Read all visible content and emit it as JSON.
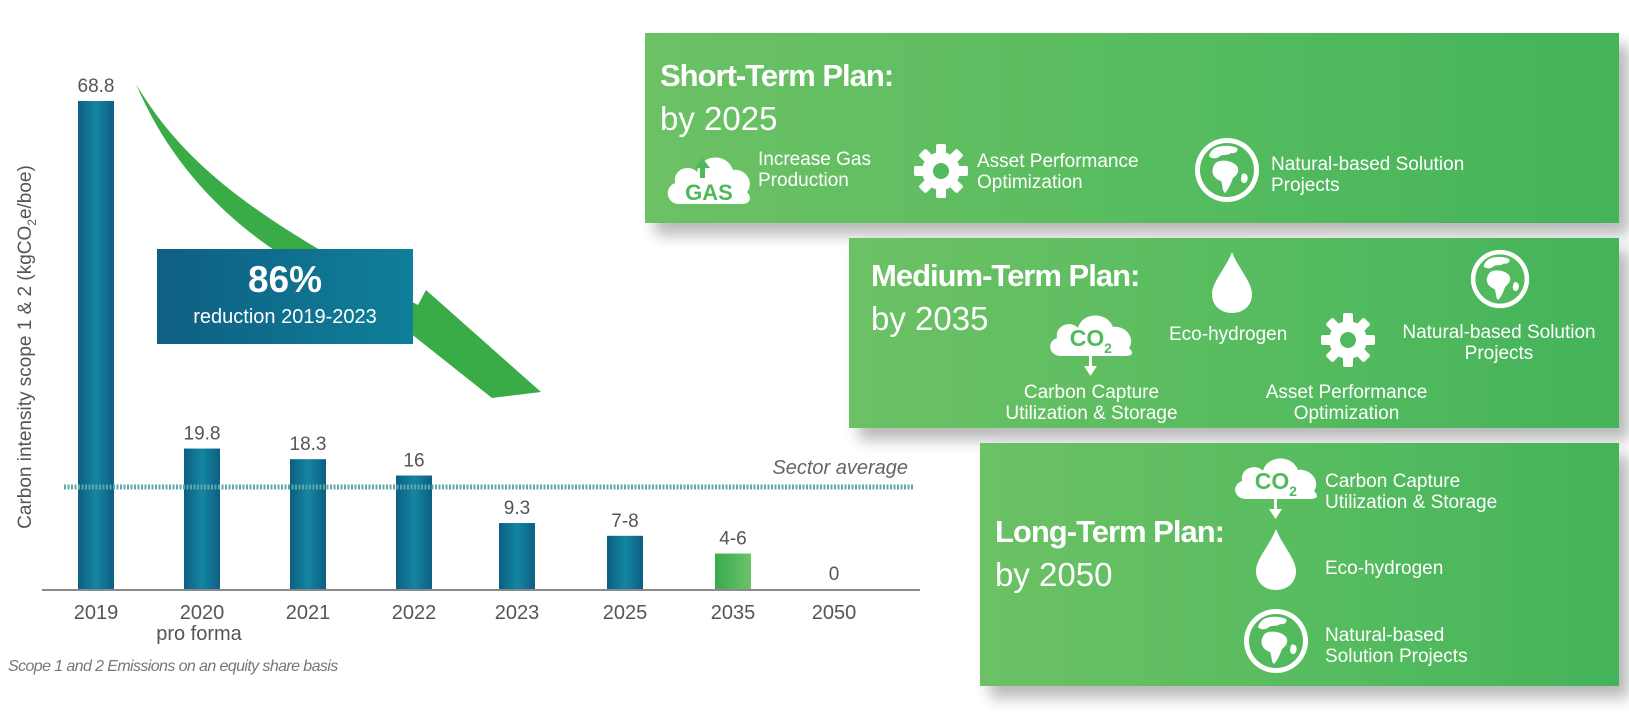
{
  "chart_data": {
    "type": "bar",
    "ylabel": "Carbon intensity scope 1 & 2 (kgCO₂e/boe)",
    "ylabel_parts": [
      "Carbon intensity scope 1 & 2 (kgCO",
      "2",
      "e/boe)"
    ],
    "categories": [
      "2019",
      "2020",
      "2021",
      "2022",
      "2023",
      "2025",
      "2035",
      "2050"
    ],
    "category_sublabels": [
      "",
      "pro forma",
      "",
      "",
      "",
      "",
      "",
      ""
    ],
    "values": [
      68.8,
      19.8,
      18.3,
      16,
      9.3,
      7.5,
      5,
      0
    ],
    "value_labels": [
      "68.8",
      "19.8",
      "18.3",
      "16",
      "9.3",
      "7-8",
      "4-6",
      "0"
    ],
    "bar_types": [
      "actual",
      "actual",
      "actual",
      "actual",
      "actual",
      "target",
      "target-green",
      "target"
    ],
    "ylim": [
      0,
      70
    ],
    "reference_line": {
      "label": "Sector average",
      "value": 15.5
    },
    "footnote": "Scope 1 and 2 Emissions on an equity share basis",
    "colors": {
      "bar": "#0e6f8f",
      "bar_light": "#1a8aa8",
      "bar_green": "#4fb85a",
      "arrow": "#3aac47",
      "axis": "#8a8a8a",
      "label": "#555555"
    }
  },
  "callout": {
    "percent": "86%",
    "text": "reduction 2019-2023"
  },
  "plans": {
    "short": {
      "title": "Short-Term Plan:",
      "subtitle": "by 2025",
      "items": [
        {
          "icon": "gas-cloud-icon",
          "label_lines": [
            "Increase Gas",
            "Production"
          ],
          "icon_text": "GAS"
        },
        {
          "icon": "gear-icon",
          "label_lines": [
            "Asset Performance",
            "Optimization"
          ]
        },
        {
          "icon": "globe-icon",
          "label_lines": [
            "Natural-based Solution",
            "Projects"
          ]
        }
      ]
    },
    "medium": {
      "title": "Medium-Term Plan:",
      "subtitle": "by 2035",
      "items": [
        {
          "icon": "co2-cloud-icon",
          "label_lines": [
            "Carbon Capture",
            "Utilization & Storage"
          ]
        },
        {
          "icon": "droplet-icon",
          "label_lines": [
            "Eco-hydrogen"
          ]
        },
        {
          "icon": "gear-icon",
          "label_lines": [
            "Asset Performance",
            "Optimization"
          ]
        },
        {
          "icon": "globe-icon",
          "label_lines": [
            "Natural-based Solution",
            "Projects"
          ]
        }
      ]
    },
    "long": {
      "title": "Long-Term Plan:",
      "subtitle": "by 2050",
      "items": [
        {
          "icon": "co2-cloud-icon",
          "label_lines": [
            "Carbon Capture",
            "Utilization & Storage"
          ]
        },
        {
          "icon": "droplet-icon",
          "label_lines": [
            "Eco-hydrogen"
          ]
        },
        {
          "icon": "globe-icon",
          "label_lines": [
            "Natural-based",
            "Solution Projects"
          ]
        }
      ]
    }
  },
  "co2_text": {
    "main": "CO",
    "sub": "2"
  },
  "colors": {
    "panel_green": "#56bc5f",
    "callout_blue": "#0f6f8e"
  }
}
